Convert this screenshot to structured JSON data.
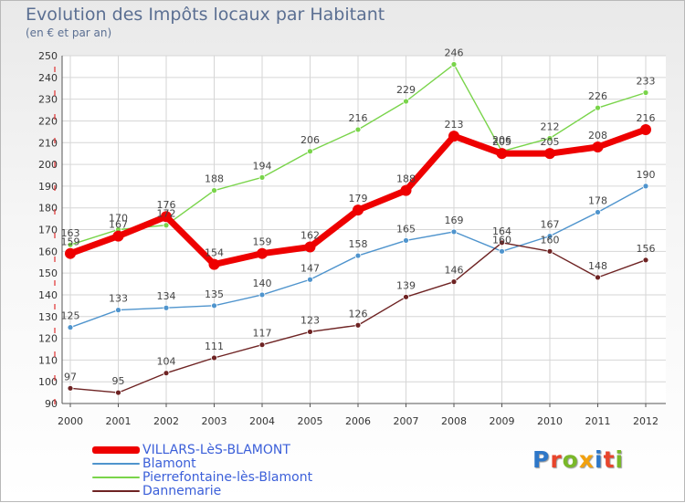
{
  "header": {
    "title": "Evolution des Impôts locaux par Habitant",
    "subtitle": "(en € et par an)"
  },
  "logo": {
    "text": "Proxiti",
    "colors": [
      "#2e77c8",
      "#e8452c",
      "#7ab829",
      "#f2a10e",
      "#2e77c8",
      "#e8452c",
      "#7ab829"
    ]
  },
  "chart_data": {
    "type": "line",
    "title": "Evolution des Impôts locaux par Habitant",
    "subtitle": "(en € et par an)",
    "xlabel": "",
    "ylabel": "",
    "categories": [
      "2000",
      "2001",
      "2002",
      "2003",
      "2004",
      "2005",
      "2006",
      "2007",
      "2008",
      "2009",
      "2010",
      "2011",
      "2012"
    ],
    "ylim": [
      90,
      250
    ],
    "yticks": [
      90,
      100,
      110,
      120,
      130,
      140,
      150,
      160,
      170,
      180,
      190,
      200,
      210,
      220,
      230,
      240,
      250
    ],
    "grid": true,
    "legend_position": "bottom-left",
    "series": [
      {
        "name": "VILLARS-LèS-BLAMONT",
        "color": "#ee0000",
        "values": [
          159,
          167,
          176,
          154,
          159,
          162,
          179,
          188,
          213,
          205,
          205,
          208,
          216
        ]
      },
      {
        "name": "Blamont",
        "color": "#4f94cd",
        "values": [
          125,
          133,
          134,
          135,
          140,
          147,
          158,
          165,
          169,
          160,
          167,
          178,
          190
        ]
      },
      {
        "name": "Pierrefontaine-lès-Blamont",
        "color": "#79d44a",
        "values": [
          163,
          170,
          172,
          188,
          194,
          206,
          216,
          229,
          246,
          206,
          212,
          226,
          233
        ]
      },
      {
        "name": "Dannemarie",
        "color": "#6e2323",
        "values": [
          97,
          95,
          104,
          111,
          117,
          123,
          126,
          139,
          146,
          164,
          160,
          148,
          156
        ]
      }
    ]
  }
}
